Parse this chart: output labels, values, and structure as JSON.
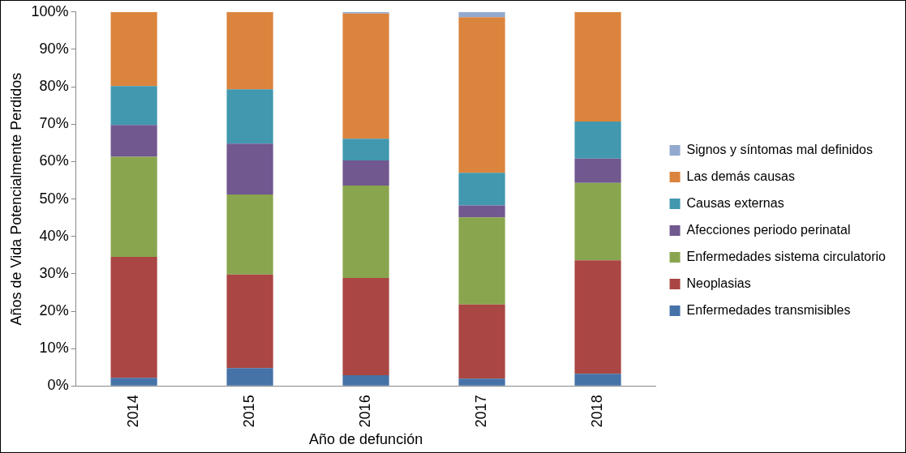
{
  "chart_data": {
    "type": "bar",
    "stacked": true,
    "xlabel": "Año de defunción",
    "ylabel": "Años de Vida Potencialmente Perdidos",
    "categories": [
      "2014",
      "2015",
      "2016",
      "2017",
      "2018"
    ],
    "series": [
      {
        "name": "Enfermedades transmisibles",
        "color": "#4572a7",
        "values": [
          2.2,
          4.8,
          2.9,
          2,
          3.3
        ]
      },
      {
        "name": "Neoplasias",
        "color": "#aa4643",
        "values": [
          32.3,
          25,
          26,
          19.8,
          30.3
        ]
      },
      {
        "name": "Enfermedades sistema circulatorio",
        "color": "#89a54e",
        "values": [
          26.8,
          21.4,
          24.7,
          23.3,
          20.7
        ]
      },
      {
        "name": "Afecciones periodo perinatal",
        "color": "#71588f",
        "values": [
          8.5,
          13.6,
          6.7,
          3.2,
          6.5
        ]
      },
      {
        "name": "Causas externas",
        "color": "#4198af",
        "values": [
          10.4,
          14.5,
          5.8,
          8.7,
          9.9
        ]
      },
      {
        "name": "Las demás causas",
        "color": "#db843d",
        "values": [
          19.8,
          20.7,
          33.5,
          41.6,
          29.3
        ]
      },
      {
        "name": "Signos y síntomas mal definidos",
        "color": "#93a9cf",
        "values": [
          0,
          0,
          0.4,
          1.4,
          0
        ]
      }
    ],
    "ylim": [
      0,
      100
    ],
    "yticks": [
      {
        "value": 0,
        "label": "0%"
      },
      {
        "value": 10,
        "label": "10%"
      },
      {
        "value": 20,
        "label": "20%"
      },
      {
        "value": 30,
        "label": "30%"
      },
      {
        "value": 40,
        "label": "40%"
      },
      {
        "value": 50,
        "label": "50%"
      },
      {
        "value": 60,
        "label": "60%"
      },
      {
        "value": 70,
        "label": "70%"
      },
      {
        "value": 80,
        "label": "80%"
      },
      {
        "value": 90,
        "label": "90%"
      },
      {
        "value": 100,
        "label": "100%"
      }
    ],
    "grid": false,
    "legend": "right"
  }
}
